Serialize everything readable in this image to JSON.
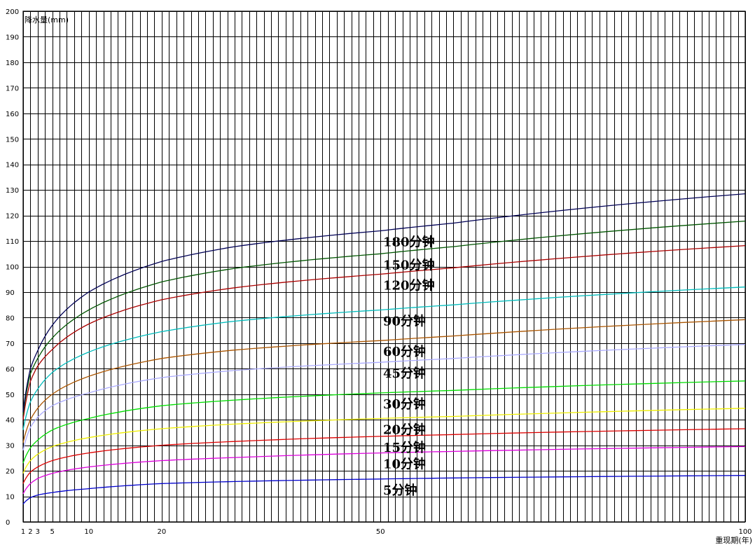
{
  "chart_data": {
    "type": "line",
    "title": "",
    "ylabel": "降水量(mm)",
    "xlabel": "重现期(年)",
    "xlim": [
      1,
      100
    ],
    "ylim": [
      0,
      200
    ],
    "y_ticks": [
      0,
      10,
      20,
      30,
      40,
      50,
      60,
      70,
      80,
      90,
      100,
      110,
      120,
      130,
      140,
      150,
      160,
      170,
      180,
      190,
      200
    ],
    "x_ticks": [
      1,
      2,
      3,
      5,
      10,
      20,
      50,
      100
    ],
    "grid": true,
    "x": [
      1,
      2,
      3,
      5,
      10,
      20,
      30,
      50,
      60,
      100
    ],
    "series": [
      {
        "name": "5分钟",
        "color": "#0000cc",
        "values": [
          7,
          9.5,
          10.5,
          11.5,
          13,
          15,
          15.8,
          16.8,
          17.2,
          18.2
        ]
      },
      {
        "name": "10分钟",
        "color": "#dd00dd",
        "values": [
          11,
          15,
          17,
          19,
          21.5,
          24,
          25.2,
          27,
          27.6,
          29.5
        ]
      },
      {
        "name": "15分钟",
        "color": "#dd0000",
        "values": [
          15,
          19.5,
          21.5,
          24,
          27,
          30,
          31.5,
          33.5,
          34.2,
          36.5
        ]
      },
      {
        "name": "20分钟",
        "color": "#eeee00",
        "values": [
          19,
          24,
          26.5,
          29.5,
          33,
          36.5,
          38.3,
          40.5,
          41.3,
          44.5
        ]
      },
      {
        "name": "30分钟",
        "color": "#00dd00",
        "values": [
          23,
          29,
          32,
          36,
          40.5,
          45.5,
          47.7,
          50.5,
          51.5,
          55.2
        ]
      },
      {
        "name": "45分钟",
        "color": "#aaaaff",
        "values": [
          28,
          37,
          41,
          45.5,
          50.5,
          56.5,
          59.3,
          62.5,
          64,
          69.5
        ]
      },
      {
        "name": "60分钟",
        "color": "#aa5500",
        "values": [
          31,
          40,
          44.5,
          50,
          57,
          64,
          67.3,
          71,
          72.8,
          79.2
        ]
      },
      {
        "name": "90分钟",
        "color": "#00bbbb",
        "values": [
          36,
          47,
          52,
          58.5,
          66.5,
          74.5,
          78.6,
          83,
          85,
          92
        ]
      },
      {
        "name": "120分钟",
        "color": "#aa0000",
        "values": [
          40,
          55,
          61,
          67.5,
          77.5,
          87,
          91.7,
          97,
          99.5,
          108.2
        ]
      },
      {
        "name": "150分钟",
        "color": "#005500",
        "values": [
          42,
          58,
          64,
          72,
          83,
          94,
          99.3,
          105,
          107.8,
          117.8
        ]
      },
      {
        "name": "180分钟",
        "color": "#000055",
        "values": [
          43,
          60,
          67,
          77,
          90,
          102,
          107.8,
          114,
          117,
          128.5
        ]
      }
    ]
  }
}
